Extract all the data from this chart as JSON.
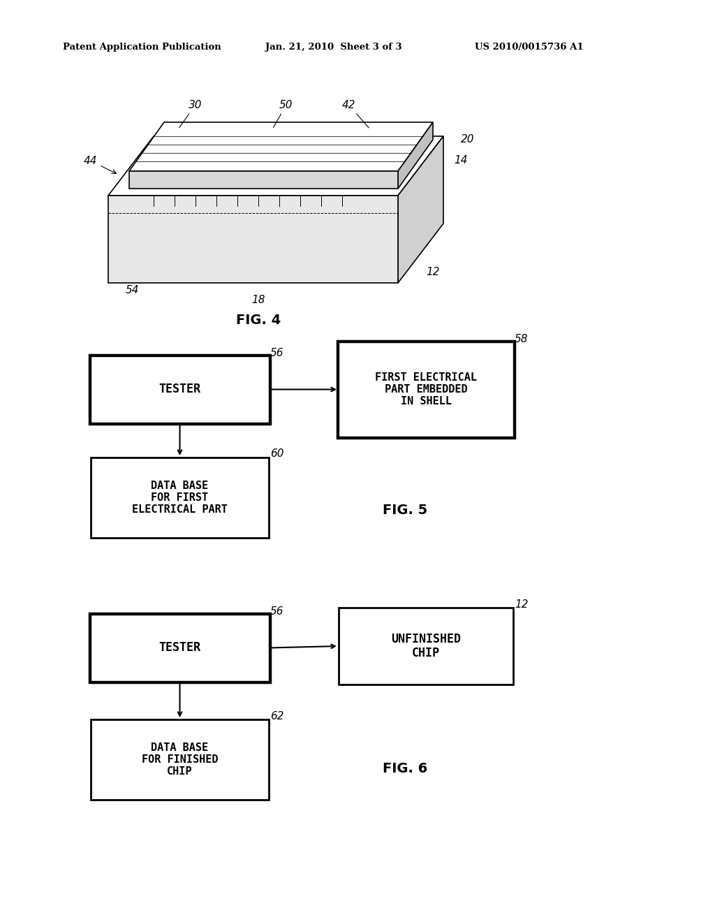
{
  "bg_color": "#ffffff",
  "header_left": "Patent Application Publication",
  "header_mid": "Jan. 21, 2010  Sheet 3 of 3",
  "header_right": "US 2010/0015736 A1",
  "fig4_label": "FIG. 4",
  "fig5_label": "FIG. 5",
  "fig6_label": "FIG. 6",
  "fig5": {
    "box1_text": "TESTER",
    "box1_label": "56",
    "box2_text": "FIRST ELECTRICAL\nPART EMBEDDED\nIN SHELL",
    "box2_label": "58",
    "box3_text": "DATA BASE\nFOR FIRST\nELECTRICAL PART",
    "box3_label": "60"
  },
  "fig6": {
    "box1_text": "TESTER",
    "box1_label": "56",
    "box2_text": "UNFINISHED\nCHIP",
    "box2_label": "12",
    "box3_text": "DATA BASE\nFOR FINISHED\nCHIP",
    "box3_label": "62"
  }
}
